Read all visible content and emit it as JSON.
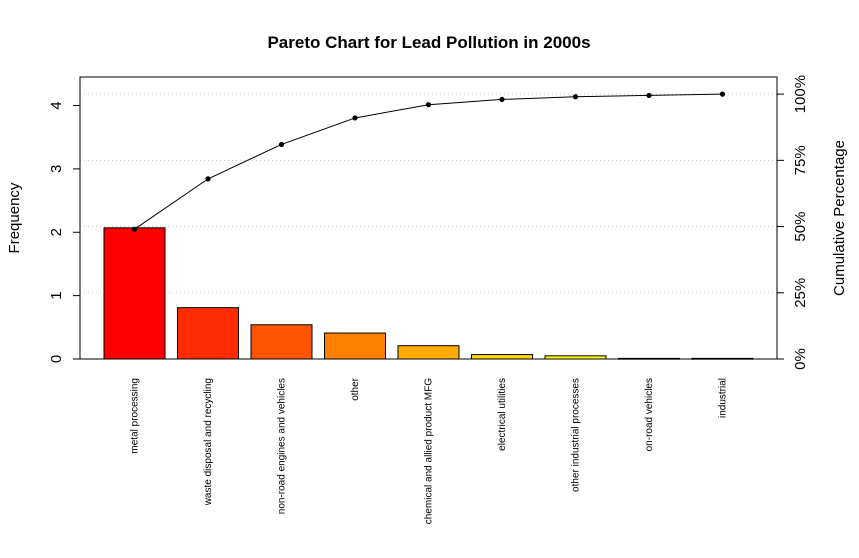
{
  "chart_data": {
    "type": "bar",
    "title": "Pareto Chart for Lead Pollution in 2000s",
    "ylabel": "Frequency",
    "y2label": "Cumulative Percentage",
    "categories": [
      "metal processing",
      "waste disposal and recycling",
      "non-road engines and vehicles",
      "other",
      "chemical and allied product MFG",
      "electrical utilities",
      "other industrial processes",
      "on-road vehicles",
      "industrial"
    ],
    "values": [
      2.07,
      0.81,
      0.54,
      0.41,
      0.21,
      0.07,
      0.05,
      0.01,
      0.01
    ],
    "cumulative_percent": [
      49,
      68,
      81,
      91,
      96,
      98,
      99,
      99.5,
      100
    ],
    "ylim": [
      0,
      4.45
    ],
    "yticks": [
      "0",
      "1",
      "2",
      "3",
      "4"
    ],
    "y2ticks": [
      "0%",
      "25%",
      "50%",
      "75%",
      "100%"
    ],
    "bar_colors": [
      "#ff0000",
      "#ff2b00",
      "#ff5500",
      "#ff8000",
      "#ffaa00",
      "#ffd500",
      "#ffff00",
      "#ffff00",
      "#ffff00"
    ],
    "grid": "horizontal dotted at cumulative ticks",
    "legend": "none"
  }
}
